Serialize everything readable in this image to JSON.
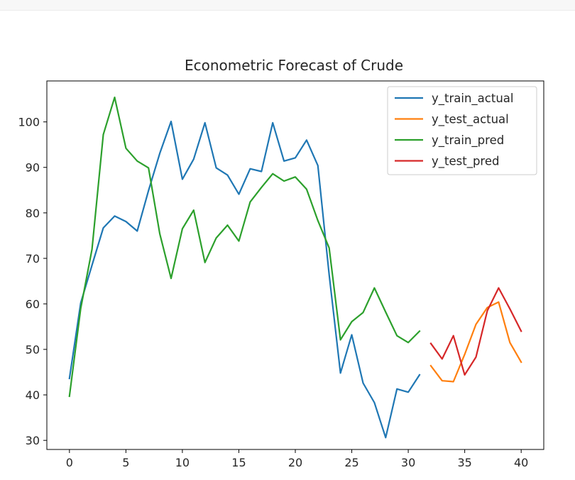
{
  "chart_data": {
    "type": "line",
    "title": "Econometric Forecast of Crude",
    "xlabel": "",
    "ylabel": "",
    "xlim": [
      -2,
      42
    ],
    "ylim": [
      28,
      109
    ],
    "xticks": [
      0,
      5,
      10,
      15,
      20,
      25,
      30,
      35,
      40
    ],
    "yticks": [
      30,
      40,
      50,
      60,
      70,
      80,
      90,
      100
    ],
    "grid": false,
    "legend_position": "top-right",
    "series": [
      {
        "name": "y_train_actual",
        "color": "#1f77b4",
        "x": [
          0,
          1,
          2,
          3,
          4,
          5,
          6,
          7,
          8,
          9,
          10,
          11,
          12,
          13,
          14,
          15,
          16,
          17,
          18,
          19,
          20,
          21,
          22,
          23,
          24,
          25,
          26,
          27,
          28,
          29,
          30,
          31
        ],
        "y": [
          43.6,
          60.2,
          68.5,
          76.7,
          79.3,
          78.1,
          76.0,
          84.9,
          93.1,
          100.1,
          87.4,
          91.8,
          99.8,
          89.9,
          88.3,
          84.1,
          89.7,
          89.1,
          99.8,
          91.4,
          92.1,
          96.0,
          90.4,
          66.4,
          44.8,
          53.2,
          42.6,
          38.3,
          30.6,
          41.3,
          40.6,
          44.4
        ]
      },
      {
        "name": "y_test_actual",
        "color": "#ff7f0e",
        "x": [
          32,
          33,
          34,
          35,
          36,
          37,
          38,
          39,
          40
        ],
        "y": [
          46.4,
          43.1,
          42.9,
          48.9,
          55.5,
          59.2,
          60.4,
          51.5,
          47.2
        ]
      },
      {
        "name": "y_train_pred",
        "color": "#2ca02c",
        "x": [
          0,
          1,
          2,
          3,
          4,
          5,
          6,
          7,
          8,
          9,
          10,
          11,
          12,
          13,
          14,
          15,
          16,
          17,
          18,
          19,
          20,
          21,
          22,
          23,
          24,
          25,
          26,
          27,
          28,
          29,
          30,
          31
        ],
        "y": [
          39.7,
          59.0,
          72.0,
          97.2,
          105.4,
          94.2,
          91.4,
          89.9,
          75.4,
          65.6,
          76.5,
          80.6,
          69.1,
          74.5,
          77.3,
          73.8,
          82.4,
          85.6,
          88.6,
          87.0,
          87.9,
          85.2,
          78.3,
          72.3,
          52.1,
          56.1,
          58.1,
          63.5,
          58.2,
          53.0,
          51.5,
          54.0
        ]
      },
      {
        "name": "y_test_pred",
        "color": "#d62728",
        "x": [
          32,
          33,
          34,
          35,
          36,
          37,
          38,
          39,
          40
        ],
        "y": [
          51.3,
          47.9,
          53.0,
          44.4,
          48.3,
          58.5,
          63.5,
          58.9,
          54.0
        ]
      }
    ]
  }
}
